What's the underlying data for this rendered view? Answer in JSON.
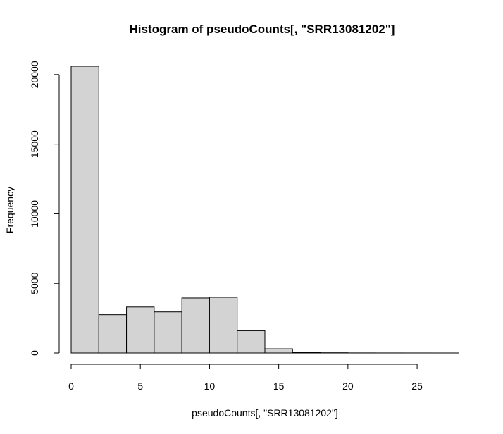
{
  "chart_data": {
    "type": "bar",
    "title": "Histogram of pseudoCounts[, \"SRR13081202\"]",
    "xlabel": "pseudoCounts[, \"SRR13081202\"]",
    "ylabel": "Frequency",
    "bin_edges": [
      0,
      2,
      4,
      6,
      8,
      10,
      12,
      14,
      16,
      18,
      20,
      22,
      24,
      26,
      28
    ],
    "values": [
      20600,
      2750,
      3300,
      2950,
      3950,
      4000,
      1600,
      300,
      50,
      15,
      5,
      3,
      2,
      1
    ],
    "xlim": [
      0,
      28
    ],
    "ylim": [
      0,
      20600
    ],
    "xticks": [
      0,
      5,
      10,
      15,
      20,
      25
    ],
    "xtick_labels": [
      "0",
      "5",
      "10",
      "15",
      "20",
      "25"
    ],
    "yticks": [
      0,
      5000,
      10000,
      15000,
      20000
    ],
    "ytick_labels": [
      "0",
      "5000",
      "10000",
      "15000",
      "20000"
    ],
    "bar_fill": "#d3d3d3",
    "bar_stroke": "#000000",
    "grid": false,
    "legend": "none"
  }
}
